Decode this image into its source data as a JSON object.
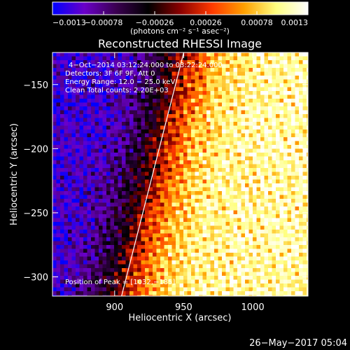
{
  "chart_data": {
    "type": "heatmap",
    "title": "Reconstructed RHESSI Image",
    "xlabel": "Heliocentric X (arcsec)",
    "ylabel": "Heliocentric Y (arcsec)",
    "xlim": [
      855,
      1040
    ],
    "ylim": [
      -315,
      -125
    ],
    "x_ticks": [
      900,
      950,
      1000
    ],
    "y_ticks": [
      -300,
      -250,
      -200,
      -150
    ],
    "colorbar": {
      "label": "(photons cm⁻² s⁻¹ asec⁻²)",
      "range": [
        -0.0013,
        0.0013
      ],
      "tick_labels": [
        "−0.0013",
        "−0.00078",
        "−0.00026",
        "0.00026",
        "0.00078",
        "0.0013"
      ],
      "colors": [
        "#0000ff",
        "#6a00c8",
        "#3a0050",
        "#000000",
        "#8a0000",
        "#ff3a00",
        "#ffa000",
        "#ffff80",
        "#ffffff"
      ]
    },
    "annotations": {
      "time_range": "4−Oct−2014 03:12:24.000 to 03:22:24.000",
      "detectors": "Detectors: 3F 6F 9F, Att 0",
      "energy": "Energy Range: 12.0 − 25.0 keV",
      "method": "Clean     Total counts: 2.20E+03",
      "peak": "Position of Peak = [1032,−185]"
    },
    "limb_curve": {
      "x": [
        950,
        905
      ],
      "y": [
        -125,
        -315
      ]
    }
  },
  "footer": {
    "date": "26−May−2017 05:04"
  }
}
